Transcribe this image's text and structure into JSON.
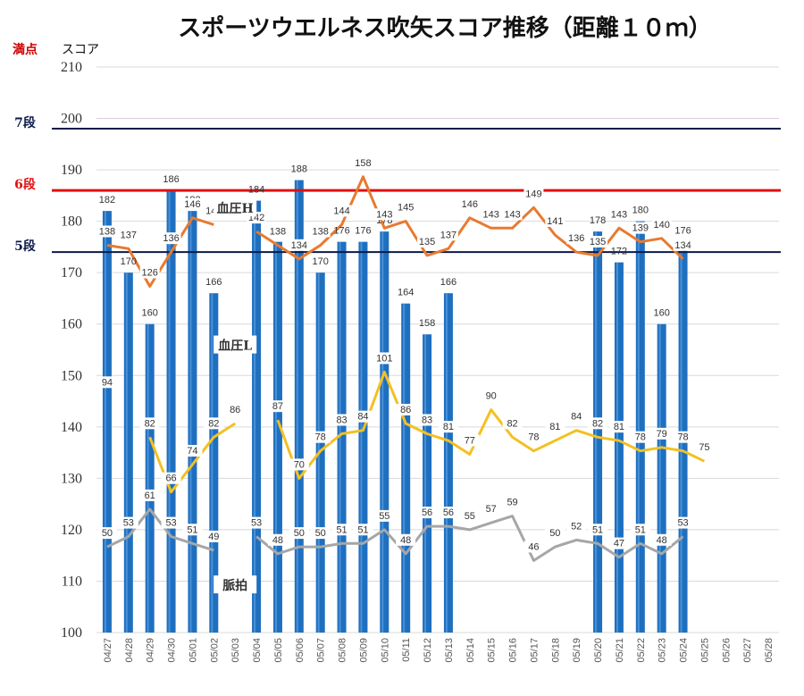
{
  "chart_data": {
    "type": "bar",
    "title": "スポーツウエルネス吹矢スコア推移（距離１０ｍ）",
    "ylabel": "スコア",
    "ylim": [
      100,
      210
    ],
    "yticks": [
      100,
      110,
      120,
      130,
      140,
      150,
      160,
      170,
      180,
      190,
      200,
      210
    ],
    "grid": true,
    "categories": [
      "04/27",
      "04/28",
      "04/29",
      "04/30",
      "05/01",
      "05/02",
      "05/03",
      "05/04",
      "05/05",
      "05/06",
      "05/07",
      "05/08",
      "05/09",
      "05/10",
      "05/11",
      "05/12",
      "05/13",
      "05/14",
      "05/15",
      "05/16",
      "05/17",
      "05/18",
      "05/19",
      "05/20",
      "05/21",
      "05/22",
      "05/23",
      "05/24",
      "05/25",
      "05/26",
      "05/27",
      "05/28"
    ],
    "series": [
      {
        "name": "",
        "kind": "bar",
        "color": "#1f6fbf",
        "values": [
          182,
          170,
          160,
          186,
          182,
          166,
          null,
          184,
          176,
          188,
          170,
          176,
          176,
          178,
          164,
          158,
          166,
          null,
          null,
          null,
          null,
          null,
          null,
          178,
          172,
          180,
          160,
          176,
          null,
          null,
          null,
          null
        ]
      },
      {
        "name": "血圧H",
        "kind": "line",
        "color": "#e87a2f",
        "values": [
          138,
          137,
          126,
          136,
          146,
          144,
          null,
          142,
          138,
          134,
          138,
          144,
          158,
          143,
          145,
          135,
          137,
          146,
          143,
          143,
          149,
          141,
          136,
          135,
          143,
          139,
          140,
          134,
          null,
          null,
          null,
          null
        ]
      },
      {
        "name": "血圧L",
        "kind": "line",
        "color": "#f4c022",
        "values": [
          94,
          null,
          82,
          66,
          74,
          82,
          86,
          null,
          87,
          70,
          78,
          83,
          84,
          101,
          86,
          83,
          81,
          77,
          90,
          82,
          78,
          81,
          84,
          82,
          81,
          78,
          79,
          78,
          75,
          null,
          null,
          null
        ]
      },
      {
        "name": "脈拍",
        "kind": "line",
        "color": "#a6a6a6",
        "values": [
          50,
          53,
          61,
          53,
          51,
          49,
          null,
          53,
          48,
          50,
          50,
          51,
          51,
          55,
          48,
          56,
          56,
          55,
          57,
          59,
          46,
          50,
          52,
          51,
          47,
          51,
          48,
          53,
          null,
          null,
          null,
          null
        ]
      }
    ],
    "reference_lines": [
      {
        "label": "満点",
        "value": 210,
        "color": "#cc0000"
      },
      {
        "label": "7段",
        "value": 198,
        "color": "#0b1a4a"
      },
      {
        "label": "6段",
        "value": 186,
        "color": "#e01010"
      },
      {
        "label": "5段",
        "value": 174,
        "color": "#0b1a4a"
      }
    ]
  }
}
